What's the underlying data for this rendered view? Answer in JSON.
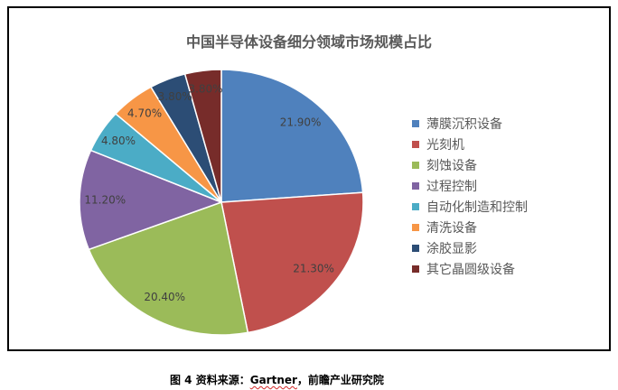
{
  "chart_data": {
    "type": "pie",
    "title": "中国半导体设备细分领域市场规模占比",
    "start": "top",
    "direction": "clockwise",
    "legend_position": "right",
    "slices": [
      {
        "label": "薄膜沉积设备",
        "value": 21.9,
        "display": "21.90%",
        "color": "#4F81BD"
      },
      {
        "label": "光刻机",
        "value": 21.3,
        "display": "21.30%",
        "color": "#C0504D"
      },
      {
        "label": "刻蚀设备",
        "value": 20.4,
        "display": "20.40%",
        "color": "#9BBB59"
      },
      {
        "label": "过程控制",
        "value": 11.2,
        "display": "11.20%",
        "color": "#8064A2"
      },
      {
        "label": "自动化制造和控制",
        "value": 4.8,
        "display": "4.80%",
        "color": "#4BACC6"
      },
      {
        "label": "清洗设备",
        "value": 4.7,
        "display": "4.70%",
        "color": "#F79646"
      },
      {
        "label": "涂胶显影",
        "value": 3.8,
        "display": "3.80%",
        "color": "#2C4D75"
      },
      {
        "label": "其它晶圆级设备",
        "value": 3.8,
        "display": "3.80%",
        "color": "#772C2A"
      }
    ]
  },
  "caption": {
    "prefix": "图 4 资料来源：",
    "source": "Gartner",
    "suffix": "，前瞻产业研究院"
  }
}
